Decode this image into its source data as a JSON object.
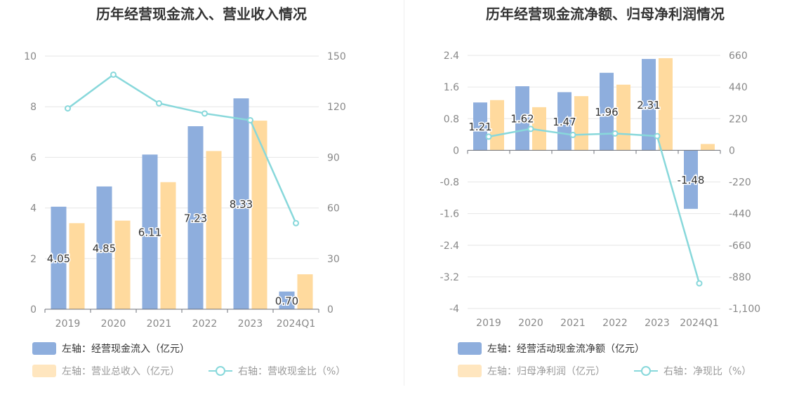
{
  "colors": {
    "primary_bar": "#8eaedd",
    "secondary_bar": "#ffda9e",
    "line": "#88d8db",
    "grid": "#e6e6e6",
    "axis_text": "#888888",
    "title": "#333333"
  },
  "chart_data": [
    {
      "type": "bar",
      "title": "历年经营现金流入、营业收入情况",
      "categories": [
        "2019",
        "2020",
        "2021",
        "2022",
        "2023",
        "2024Q1"
      ],
      "left_axis": {
        "ylim": [
          0,
          10
        ],
        "ticks": [
          "0",
          "2",
          "4",
          "6",
          "8",
          "10"
        ]
      },
      "right_axis": {
        "ylim": [
          0,
          150
        ],
        "ticks": [
          "0",
          "30",
          "60",
          "90",
          "120",
          "150"
        ]
      },
      "series": [
        {
          "name": "左轴：经营现金流入（亿元）",
          "axis": "left",
          "values": [
            4.05,
            4.85,
            6.11,
            7.23,
            8.33,
            0.7
          ],
          "labels": [
            "4.05",
            "4.85",
            "6.11",
            "7.23",
            "8.33",
            "0.70"
          ]
        },
        {
          "name": "左轴：营业总收入（亿元）",
          "axis": "left",
          "values": [
            3.4,
            3.5,
            5.02,
            6.25,
            7.45,
            1.38
          ]
        },
        {
          "name": "右轴：营收现金比（%）",
          "axis": "right",
          "type": "line",
          "values": [
            119,
            139,
            122,
            116,
            112,
            51
          ]
        }
      ]
    },
    {
      "type": "bar",
      "title": "历年经营现金流净额、归母净利润情况",
      "categories": [
        "2019",
        "2020",
        "2021",
        "2022",
        "2023",
        "2024Q1"
      ],
      "left_axis": {
        "ylim": [
          -4,
          2.4
        ],
        "ticks": [
          "-4",
          "-3.2",
          "-2.4",
          "-1.6",
          "-0.8",
          "0",
          "0.8",
          "1.6",
          "2.4"
        ]
      },
      "right_axis": {
        "ylim": [
          -1100,
          660
        ],
        "ticks": [
          "-1,100",
          "-880",
          "-660",
          "-440",
          "-220",
          "0",
          "220",
          "440",
          "660"
        ]
      },
      "series": [
        {
          "name": "左轴：经营活动现金流净额（亿元）",
          "axis": "left",
          "values": [
            1.21,
            1.62,
            1.47,
            1.96,
            2.31,
            -1.48
          ],
          "labels": [
            "1.21",
            "1.62",
            "1.47",
            "1.96",
            "2.31",
            "-1.48"
          ]
        },
        {
          "name": "左轴：归母净利润（亿元）",
          "axis": "left",
          "values": [
            1.27,
            1.09,
            1.37,
            1.66,
            2.33,
            0.16
          ]
        },
        {
          "name": "右轴：净现比（%）",
          "axis": "right",
          "type": "line",
          "values": [
            95,
            149,
            107,
            117,
            99,
            -925
          ]
        }
      ]
    }
  ]
}
